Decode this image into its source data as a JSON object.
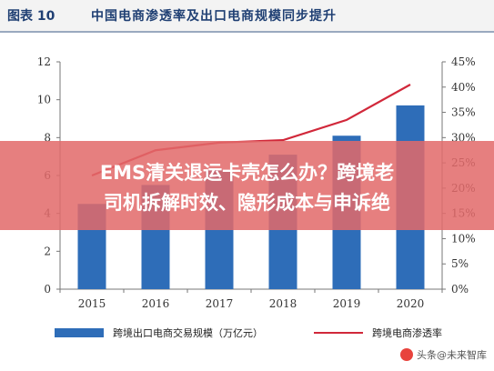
{
  "header": {
    "label": "图表 10",
    "title": "中国电商渗透率及出口电商规模同步提升"
  },
  "banner": {
    "line1": "EMS清关退运卡壳怎么办？跨境老",
    "line2": "司机拆解时效、隐形成本与申诉绝"
  },
  "watermark": "头条@未来智库",
  "colors": {
    "bar": "#2e6db8",
    "line": "#d1283a",
    "banner": "#e26a6a",
    "header_text": "#1f3f73"
  },
  "chart_data": {
    "type": "bar",
    "categories": [
      "2015",
      "2016",
      "2017",
      "2018",
      "2019",
      "2020"
    ],
    "series": [
      {
        "name": "跨境出口电商交易规模（万亿元）",
        "type": "bar",
        "axis": "left",
        "values": [
          4.5,
          5.5,
          6.3,
          7.1,
          8.1,
          9.7
        ]
      },
      {
        "name": "跨境电商渗透率",
        "type": "line",
        "axis": "right",
        "values": [
          22.5,
          27.5,
          29.0,
          29.5,
          33.5,
          40.5
        ]
      }
    ],
    "ylim": [
      0,
      12
    ],
    "y_ticks": [
      "0",
      "2",
      "4",
      "6",
      "8",
      "10",
      "12"
    ],
    "y2lim": [
      0,
      45
    ],
    "y2_ticks": [
      "0%",
      "5%",
      "10%",
      "15%",
      "20%",
      "25%",
      "30%",
      "35%",
      "40%",
      "45%"
    ],
    "legend_position": "bottom",
    "grid": false
  }
}
